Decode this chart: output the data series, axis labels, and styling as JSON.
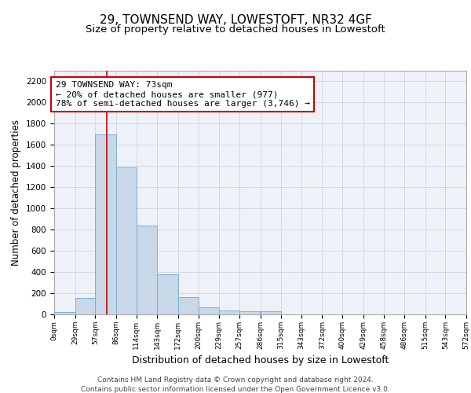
{
  "title": "29, TOWNSEND WAY, LOWESTOFT, NR32 4GF",
  "subtitle": "Size of property relative to detached houses in Lowestoft",
  "xlabel": "Distribution of detached houses by size in Lowestoft",
  "ylabel": "Number of detached properties",
  "bar_edges": [
    0,
    29,
    57,
    86,
    114,
    143,
    172,
    200,
    229,
    257,
    286,
    315,
    343,
    372,
    400,
    429,
    458,
    486,
    515,
    543,
    572
  ],
  "bar_heights": [
    20,
    155,
    1700,
    1390,
    835,
    380,
    165,
    65,
    35,
    28,
    28,
    0,
    0,
    0,
    0,
    0,
    0,
    0,
    0,
    0
  ],
  "bar_color": "#c8d8e8",
  "bar_edge_color": "#7bafd4",
  "property_line_x": 73,
  "property_line_color": "#cc0000",
  "annotation_text": "29 TOWNSEND WAY: 73sqm\n← 20% of detached houses are smaller (977)\n78% of semi-detached houses are larger (3,746) →",
  "annotation_box_color": "#ffffff",
  "annotation_box_edge_color": "#cc0000",
  "ylim": [
    0,
    2300
  ],
  "yticks": [
    0,
    200,
    400,
    600,
    800,
    1000,
    1200,
    1400,
    1600,
    1800,
    2000,
    2200
  ],
  "xtick_labels": [
    "0sqm",
    "29sqm",
    "57sqm",
    "86sqm",
    "114sqm",
    "143sqm",
    "172sqm",
    "200sqm",
    "229sqm",
    "257sqm",
    "286sqm",
    "315sqm",
    "343sqm",
    "372sqm",
    "400sqm",
    "429sqm",
    "458sqm",
    "486sqm",
    "515sqm",
    "543sqm",
    "572sqm"
  ],
  "grid_color": "#d0d8e8",
  "background_color": "#eef2f8",
  "footer_line1": "Contains HM Land Registry data © Crown copyright and database right 2024.",
  "footer_line2": "Contains public sector information licensed under the Open Government Licence v3.0.",
  "title_fontsize": 11,
  "subtitle_fontsize": 9.5,
  "xlabel_fontsize": 9,
  "ylabel_fontsize": 8.5,
  "annotation_fontsize": 8,
  "footer_fontsize": 6.5,
  "xtick_fontsize": 6.5,
  "ytick_fontsize": 7.5
}
